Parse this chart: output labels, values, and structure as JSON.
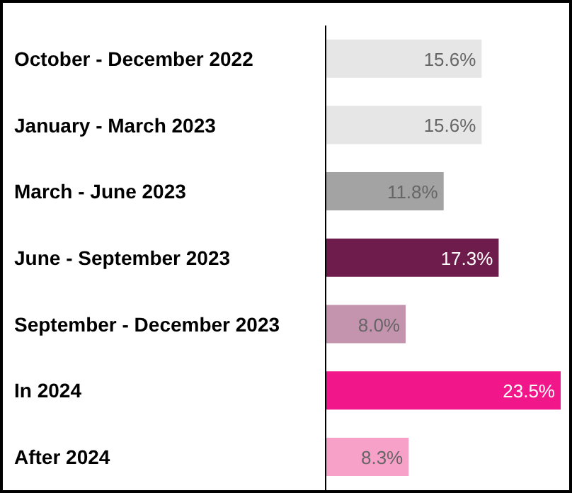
{
  "chart_data": {
    "type": "bar",
    "orientation": "horizontal",
    "categories": [
      "October - December 2022",
      "January - March 2023",
      "March - June 2023",
      "June - September 2023",
      "September - December 2023",
      "In 2024",
      "After 2024"
    ],
    "values": [
      15.6,
      15.6,
      11.8,
      17.3,
      8.0,
      23.5,
      8.3
    ],
    "colors": [
      "#e6e6e6",
      "#e6e6e6",
      "#a3a3a3",
      "#6e1c4c",
      "#c493ae",
      "#f2168b",
      "#f7a0c8"
    ],
    "value_labels": [
      "15.6%",
      "15.6%",
      "11.8%",
      "17.3%",
      "8.0%",
      "23.5%",
      "8.3%"
    ]
  }
}
